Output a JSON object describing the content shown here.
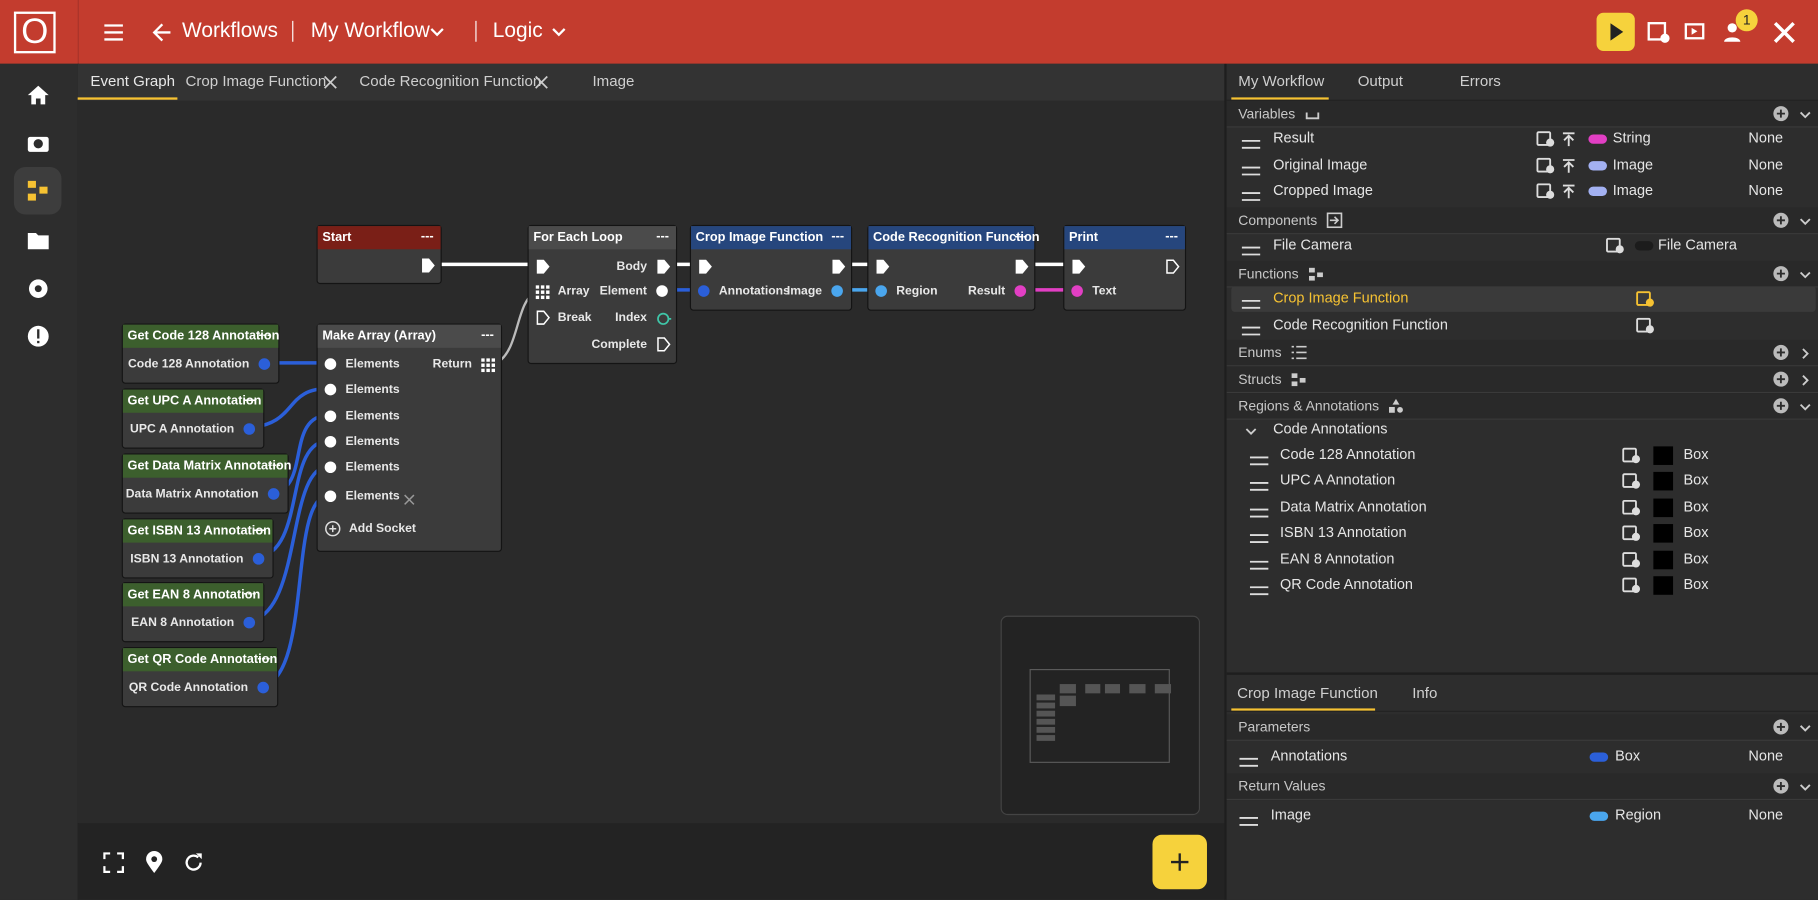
{
  "header": {
    "logo": "O",
    "back_label": "Workflows",
    "workflow": "My Workflow",
    "view": "Logic",
    "notifications": 1
  },
  "editor_tabs": [
    "Event Graph",
    "Crop Image Function",
    "Code Recognition Function",
    "Image"
  ],
  "node_menu": "---",
  "nodes": [
    {
      "title": "Start"
    },
    {
      "title": "For Each Loop",
      "labels": [
        "Body",
        "Array",
        "Element",
        "Break",
        "Index",
        "Complete"
      ]
    },
    {
      "title": "Crop Image Function",
      "labels": [
        "Annotations",
        "Image"
      ]
    },
    {
      "title": "Code Recognition Function",
      "labels": [
        "Region",
        "Result"
      ]
    },
    {
      "title": "Print",
      "labels": [
        "Text"
      ]
    },
    {
      "title": "Make Array (Array)",
      "labels": [
        "Elements",
        "Return",
        "Elements",
        "Elements",
        "Elements",
        "Elements",
        "Elements",
        "Add Socket"
      ]
    },
    {
      "title": "Get Code 128 Annotation",
      "labels": [
        "Code 128 Annotation"
      ]
    },
    {
      "title": "Get UPC A Annotation",
      "labels": [
        "UPC A Annotation"
      ]
    },
    {
      "title": "Get Data Matrix Annotation",
      "labels": [
        "Data Matrix Annotation"
      ]
    },
    {
      "title": "Get ISBN 13 Annotation",
      "labels": [
        "ISBN 13 Annotation"
      ]
    },
    {
      "title": "Get EAN 8 Annotation",
      "labels": [
        "EAN 8 Annotation"
      ]
    },
    {
      "title": "Get QR Code Annotation",
      "labels": [
        "QR Code Annotation"
      ]
    }
  ],
  "panel": {
    "tabs": [
      "My Workflow",
      "Output",
      "Errors"
    ],
    "variables": {
      "label": "Variables",
      "items": [
        {
          "name": "Result",
          "type": "String",
          "color": "#e23fc4",
          "default": "None"
        },
        {
          "name": "Original Image",
          "type": "Image",
          "color": "#a3b1f2",
          "default": "None"
        },
        {
          "name": "Cropped Image",
          "type": "Image",
          "color": "#a3b1f2",
          "default": "None"
        }
      ]
    },
    "components": {
      "label": "Components",
      "items": [
        {
          "name": "File Camera",
          "type": "File Camera",
          "color": "#1c1c1c"
        }
      ]
    },
    "functions": {
      "label": "Functions",
      "items": [
        "Crop Image Function",
        "Code Recognition Function"
      ],
      "selected": 0
    },
    "enums": {
      "label": "Enums"
    },
    "structs": {
      "label": "Structs"
    },
    "regions": {
      "label": "Regions & Annotations",
      "group": "Code Annotations",
      "color": "#000000",
      "items": [
        {
          "name": "Code 128 Annotation",
          "type": "Box"
        },
        {
          "name": "UPC A Annotation",
          "type": "Box"
        },
        {
          "name": "Data Matrix Annotation",
          "type": "Box"
        },
        {
          "name": "ISBN 13 Annotation",
          "type": "Box"
        },
        {
          "name": "EAN 8 Annotation",
          "type": "Box"
        },
        {
          "name": "QR Code Annotation",
          "type": "Box"
        }
      ]
    }
  },
  "details": {
    "tabs": [
      "Crop Image Function",
      "Info"
    ],
    "parameters": {
      "label": "Parameters",
      "items": [
        {
          "name": "Annotations",
          "type": "Box",
          "color": "#2b5fd9",
          "default": "None"
        }
      ]
    },
    "returns": {
      "label": "Return Values",
      "items": [
        {
          "name": "Image",
          "type": "Region",
          "color": "#4aa6ee",
          "default": "None"
        }
      ]
    }
  }
}
